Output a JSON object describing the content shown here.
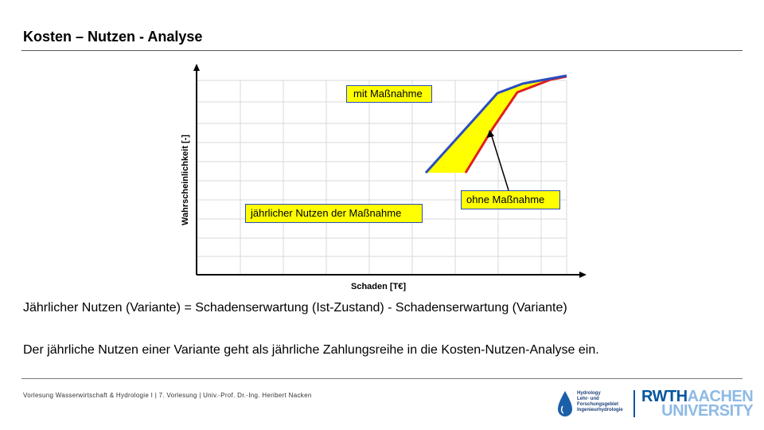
{
  "slide": {
    "title": "Kosten – Nutzen - Analyse",
    "formula": "Jährlicher Nutzen (Variante) = Schadenserwartung (Ist-Zustand) - Schadenserwartung (Variante)",
    "body": "Der jährliche Nutzen einer Variante geht als jährliche Zahlungsreihe in die Kosten-Nutzen-Analyse ein.",
    "footer": "Vorlesung Wasserwirtschaft & Hydrologie I | 7. Vorlesung | Univ.-Prof. Dr.-Ing. Heribert Nacken"
  },
  "diagram": {
    "ylabel": "Wahrscheinlichkeit [-]",
    "xlabel": "Schaden [T€]",
    "callouts": {
      "with_measure": "mit Maßnahme",
      "without_measure": "ohne Maßnahme",
      "annual_benefit": "jährlicher Nutzen der Maßnahme"
    },
    "colors": {
      "with_measure_curve": "#2a4dbf",
      "without_measure_curve": "#e02020",
      "benefit_area": "#ffff00",
      "grid": "#d8d8d8",
      "axis": "#000000"
    }
  },
  "logos": {
    "hydrology": {
      "lines": [
        "Hydrology",
        "Lehr- und",
        "Forschungsgebiet",
        "Ingenieurhydrologie"
      ],
      "icon": "water-drop-icon"
    },
    "rwth": {
      "line1_bold": "RWTH",
      "line1_light": "AACHEN",
      "line2": "UNIVERSITY"
    }
  }
}
